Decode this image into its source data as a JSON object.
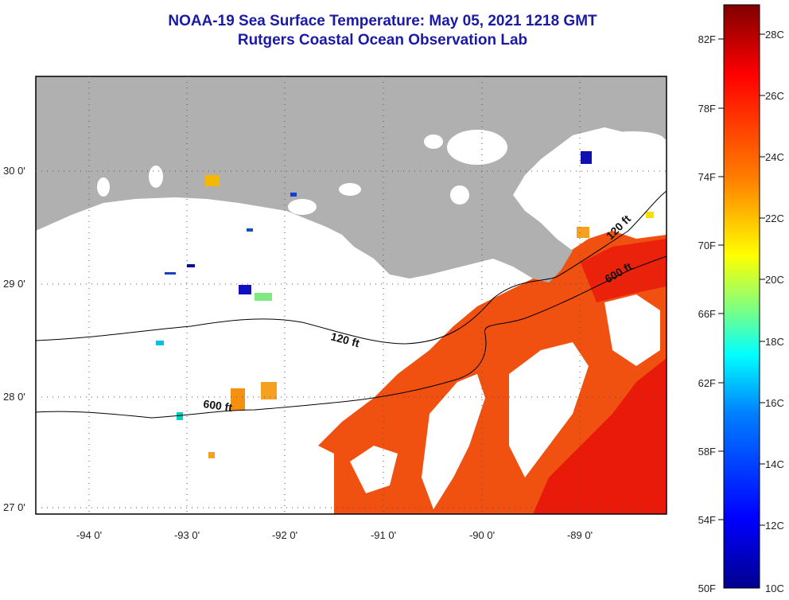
{
  "header": {
    "title": "NOAA-19 Sea Surface Temperature:  May 05, 2021 1218 GMT",
    "subtitle": "Rutgers Coastal Ocean Observation Lab"
  },
  "map": {
    "lat_labels": [
      "30 0'",
      "29 0'",
      "28 0'",
      "27 0'"
    ],
    "lon_labels": [
      "-94 0'",
      "-93 0'",
      "-92 0'",
      "-91 0'",
      "-90 0'",
      "-89 0'"
    ],
    "contour_labels": {
      "shelf_120_west": "120 ft",
      "shelf_120_east": "120 ft",
      "slope_600_west": "600 ft",
      "slope_600_east": "600 ft"
    },
    "colors": {
      "land": "#b0b0b0",
      "no_data": "#ffffff",
      "warm_water": "#f05010",
      "hot_water": "#ea1a0a"
    }
  },
  "colorbar": {
    "fahrenheit_labels": [
      "82F",
      "78F",
      "74F",
      "70F",
      "66F",
      "62F",
      "58F",
      "54F",
      "50F"
    ],
    "celsius_labels": [
      "28C",
      "26C",
      "24C",
      "22C",
      "20C",
      "18C",
      "16C",
      "14C",
      "12C",
      "10C"
    ],
    "gradient_colors": [
      "#800000",
      "#ff0000",
      "#ff8000",
      "#ffff00",
      "#80ff80",
      "#00ffff",
      "#0080ff",
      "#0000ff",
      "#00008f"
    ]
  }
}
